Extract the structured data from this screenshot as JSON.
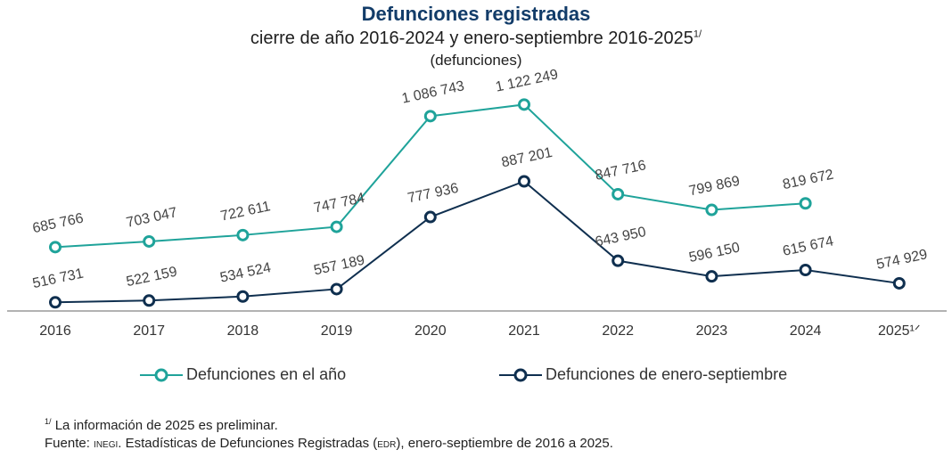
{
  "header": {
    "title": "Defunciones registradas",
    "subtitle": "cierre de año 2016-2024 y enero-septiembre 2016-2025",
    "subtitle_sup": "1/",
    "unit": "(defunciones)"
  },
  "legend": {
    "series1": "Defunciones en el año",
    "series2": "Defunciones de enero-septiembre"
  },
  "notes": {
    "note1_sup": "1/",
    "note1": "La información de 2025 es preliminar.",
    "source_prefix": "Fuente: ",
    "source_org": "INEGI",
    "source_mid": ". Estadísticas de Defunciones Registradas (",
    "source_abbr": "EDR",
    "source_end": "), enero-septiembre de 2016 a 2025."
  },
  "colors": {
    "annual": "#1fa39a",
    "janSep": "#0f2f4f",
    "axis": "#999999"
  },
  "chart_data": {
    "type": "line",
    "title": "Defunciones registradas",
    "categories": [
      "2016",
      "2017",
      "2018",
      "2019",
      "2020",
      "2021",
      "2022",
      "2023",
      "2024",
      "2025"
    ],
    "category_labels": [
      "2016",
      "2017",
      "2018",
      "2019",
      "2020",
      "2021",
      "2022",
      "2023",
      "2024",
      "2025¹ᐟ"
    ],
    "series": [
      {
        "name": "Defunciones en el año",
        "values": [
          685766,
          703047,
          722611,
          747784,
          1086743,
          1122249,
          847716,
          799869,
          819672,
          null
        ],
        "labels": [
          "685 766",
          "703 047",
          "722 611",
          "747 784",
          "1 086 743",
          "1 122 249",
          "847 716",
          "799 869",
          "819 672",
          ""
        ]
      },
      {
        "name": "Defunciones de enero-septiembre",
        "values": [
          516731,
          522159,
          534524,
          557189,
          777936,
          887201,
          643950,
          596150,
          615674,
          574929
        ],
        "labels": [
          "516 731",
          "522 159",
          "534 524",
          "557 189",
          "777 936",
          "887 201",
          "643 950",
          "596 150",
          "615 674",
          "574 929"
        ]
      }
    ],
    "ylim": [
      500000,
      1180000
    ],
    "grid": false,
    "legend_position": "bottom"
  }
}
